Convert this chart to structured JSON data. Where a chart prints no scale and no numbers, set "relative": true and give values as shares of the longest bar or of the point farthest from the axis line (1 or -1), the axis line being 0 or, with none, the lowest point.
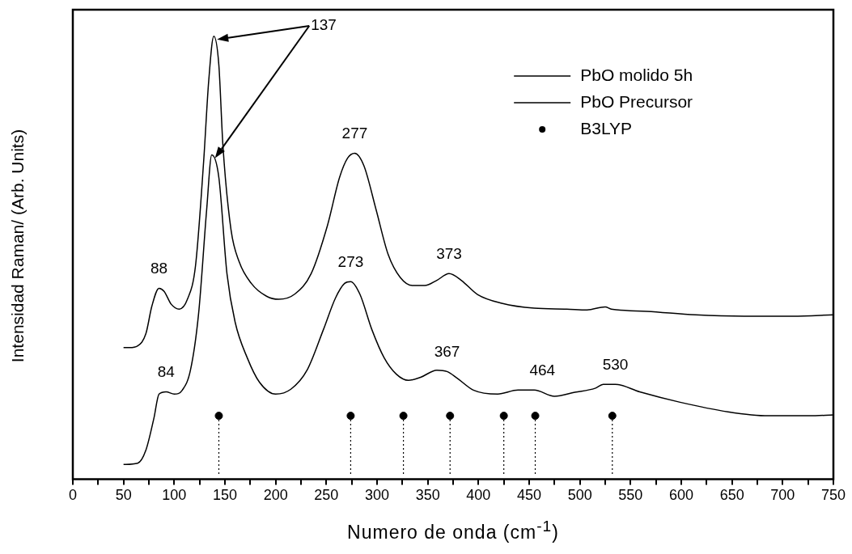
{
  "chart_data": {
    "type": "line",
    "relative": true,
    "xlabel": "Numero de onda (cm$^{-1}$)",
    "ylabel": "Intensidad Raman/ (Arb. Units)",
    "xlim": [
      0,
      750
    ],
    "xticks": [
      0,
      {
        "value": 25,
        "label": null
      },
      50,
      {
        "value": 75,
        "label": null
      },
      100,
      {
        "value": 125,
        "label": null
      },
      150,
      {
        "value": 175,
        "label": null
      },
      200,
      {
        "value": 225,
        "label": null
      },
      250,
      {
        "value": 275,
        "label": null
      },
      300,
      {
        "value": 325,
        "label": null
      },
      350,
      {
        "value": 375,
        "label": null
      },
      400,
      {
        "value": 425,
        "label": null
      },
      450,
      {
        "value": 475,
        "label": null
      },
      500,
      {
        "value": 525,
        "label": null
      },
      550,
      {
        "value": 575,
        "label": null
      },
      600,
      {
        "value": 625,
        "label": null
      },
      650,
      {
        "value": 675,
        "label": null
      },
      700,
      {
        "value": 725,
        "label": null
      },
      750
    ],
    "grid": false,
    "legend": "top right",
    "marker": "none",
    "line_style": "solid",
    "series": [
      {
        "name": "PbO molido 5h",
        "color": "#000000",
        "x": [
          50,
          56,
          64,
          72,
          78,
          85,
          90,
          97,
          105,
          113,
          121,
          129,
          134,
          139,
          144,
          148,
          156,
          164,
          176,
          191,
          203,
          219,
          235,
          251,
          263,
          271,
          278,
          287,
          299,
          311,
          323,
          335,
          347,
          359,
          371,
          383,
          399,
          423,
          455,
          487,
          507,
          525,
          531,
          566,
          614,
          662,
          710,
          750
        ],
        "values": [
          0.297,
          0.297,
          0.301,
          0.328,
          0.391,
          0.431,
          0.424,
          0.395,
          0.384,
          0.406,
          0.482,
          0.717,
          0.899,
          1.0,
          0.935,
          0.754,
          0.563,
          0.491,
          0.442,
          0.413,
          0.406,
          0.418,
          0.464,
          0.572,
          0.681,
          0.725,
          0.736,
          0.708,
          0.609,
          0.507,
          0.455,
          0.437,
          0.437,
          0.449,
          0.464,
          0.449,
          0.417,
          0.397,
          0.386,
          0.384,
          0.382,
          0.389,
          0.384,
          0.379,
          0.371,
          0.368,
          0.368,
          0.371
        ]
      },
      {
        "name": "PbO Precursor",
        "color": "#000000",
        "x": [
          50,
          64,
          72,
          80,
          85,
          92,
          100,
          108,
          116,
          124,
          132,
          137,
          144,
          152,
          160,
          172,
          184,
          200,
          215,
          231,
          247,
          259,
          268,
          274,
          283,
          295,
          307,
          319,
          331,
          343,
          359,
          369,
          379,
          395,
          419,
          439,
          455,
          475,
          495,
          515,
          523,
          535,
          559,
          598,
          646,
          686,
          726,
          750
        ],
        "values": [
          0.033,
          0.036,
          0.065,
          0.138,
          0.192,
          0.197,
          0.192,
          0.201,
          0.246,
          0.373,
          0.609,
          0.732,
          0.681,
          0.464,
          0.355,
          0.274,
          0.219,
          0.192,
          0.203,
          0.246,
          0.337,
          0.409,
          0.442,
          0.446,
          0.418,
          0.337,
          0.274,
          0.237,
          0.223,
          0.23,
          0.246,
          0.243,
          0.228,
          0.201,
          0.192,
          0.201,
          0.201,
          0.187,
          0.196,
          0.205,
          0.214,
          0.214,
          0.197,
          0.174,
          0.152,
          0.143,
          0.143,
          0.145
        ]
      },
      {
        "name": "B3LYP",
        "type": "lollipop",
        "color": "#000000",
        "marker": "circle",
        "line_style": "dotted",
        "x": [
          144,
          274,
          326,
          372,
          425,
          456,
          532
        ],
        "values": [
          0.143,
          0.143,
          0.143,
          0.143,
          0.143,
          0.143,
          0.143
        ]
      }
    ],
    "annotations": [
      "137",
      {
        "text": "88",
        "x": 85,
        "y": 0.431
      },
      {
        "text": "277",
        "x": 278,
        "y": 0.736
      },
      {
        "text": "373",
        "x": 371,
        "y": 0.464
      },
      {
        "text": "84",
        "x": 92,
        "y": 0.197
      },
      {
        "text": "273",
        "x": 274,
        "y": 0.446
      },
      {
        "text": "367",
        "x": 369,
        "y": 0.243
      },
      {
        "text": "464",
        "x": 463,
        "y": 0.201
      },
      {
        "text": "530",
        "x": 535,
        "y": 0.214
      }
    ]
  }
}
